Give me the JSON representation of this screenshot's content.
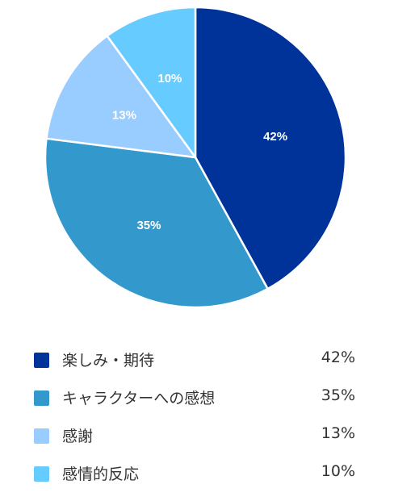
{
  "chart_data": {
    "type": "pie",
    "categories": [
      "楽しみ・期待",
      "キャラクターへの感想",
      "感謝",
      "感情的反応"
    ],
    "values": [
      42,
      35,
      13,
      10
    ],
    "value_labels": [
      "42%",
      "35%",
      "13%",
      "10%"
    ],
    "colors": [
      "#003399",
      "#3399cc",
      "#99ccff",
      "#66ccff"
    ],
    "title": "",
    "legend": "bottom"
  }
}
